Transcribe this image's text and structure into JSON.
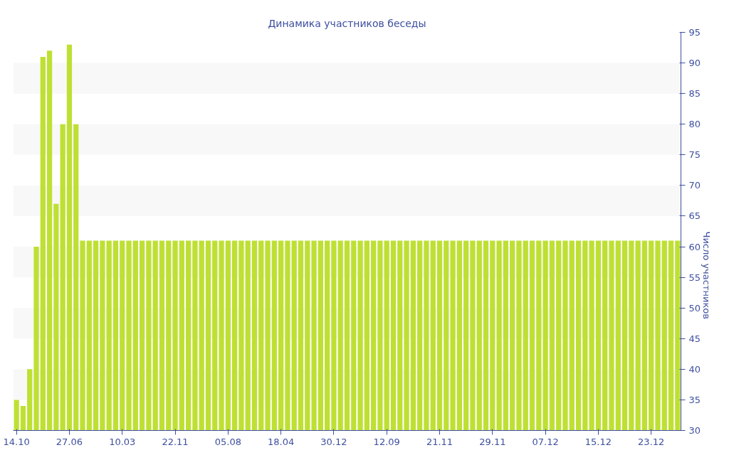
{
  "chart_data": {
    "type": "bar",
    "title": "Динамика участников беседы",
    "ylabel": "Число участников",
    "categories": [
      "14.10",
      null,
      null,
      null,
      null,
      null,
      null,
      null,
      "27.06",
      null,
      null,
      null,
      null,
      null,
      null,
      null,
      "10.03",
      null,
      null,
      null,
      null,
      null,
      null,
      null,
      "22.11",
      null,
      null,
      null,
      null,
      null,
      null,
      null,
      "05.08",
      null,
      null,
      null,
      null,
      null,
      null,
      null,
      "18.04",
      null,
      null,
      null,
      null,
      null,
      null,
      null,
      "30.12",
      null,
      null,
      null,
      null,
      null,
      null,
      null,
      "12.09",
      null,
      null,
      null,
      null,
      null,
      null,
      null,
      "21.11",
      null,
      null,
      null,
      null,
      null,
      null,
      null,
      "29.11",
      null,
      null,
      null,
      null,
      null,
      null,
      null,
      "07.12",
      null,
      null,
      null,
      null,
      null,
      null,
      null,
      "15.12",
      null,
      null,
      null,
      null,
      null,
      null,
      null,
      "23.12",
      null,
      null,
      null,
      null
    ],
    "values": [
      35,
      34,
      40,
      60,
      91,
      92,
      67,
      80,
      93,
      80,
      61,
      61,
      61,
      61,
      61,
      61,
      61,
      61,
      61,
      61,
      61,
      61,
      61,
      61,
      61,
      61,
      61,
      61,
      61,
      61,
      61,
      61,
      61,
      61,
      61,
      61,
      61,
      61,
      61,
      61,
      61,
      61,
      61,
      61,
      61,
      61,
      61,
      61,
      61,
      61,
      61,
      61,
      61,
      61,
      61,
      61,
      61,
      61,
      61,
      61,
      61,
      61,
      61,
      61,
      61,
      61,
      61,
      61,
      61,
      61,
      61,
      61,
      61,
      61,
      61,
      61,
      61,
      61,
      61,
      61,
      61,
      61,
      61,
      61,
      61,
      61,
      61,
      61,
      61,
      61,
      61,
      61,
      61,
      61,
      61,
      61,
      61,
      61,
      61,
      61,
      61
    ],
    "color": "#bee033",
    "ylim": [
      30,
      95
    ],
    "yticks": [
      30,
      35,
      40,
      45,
      50,
      55,
      60,
      65,
      70,
      75,
      80,
      85,
      90,
      95
    ],
    "bands": [
      {
        "axis": "y",
        "from": 35,
        "to": 40,
        "color": "#f8f8f8"
      },
      {
        "axis": "y",
        "from": 45,
        "to": 50,
        "color": "#f8f8f8"
      },
      {
        "axis": "y",
        "from": 55,
        "to": 60,
        "color": "#f8f8f8"
      },
      {
        "axis": "y",
        "from": 65,
        "to": 70,
        "color": "#f8f8f8"
      },
      {
        "axis": "y",
        "from": 75,
        "to": 80,
        "color": "#f8f8f8"
      },
      {
        "axis": "y",
        "from": 85,
        "to": 90,
        "color": "#f8f8f8"
      }
    ]
  }
}
